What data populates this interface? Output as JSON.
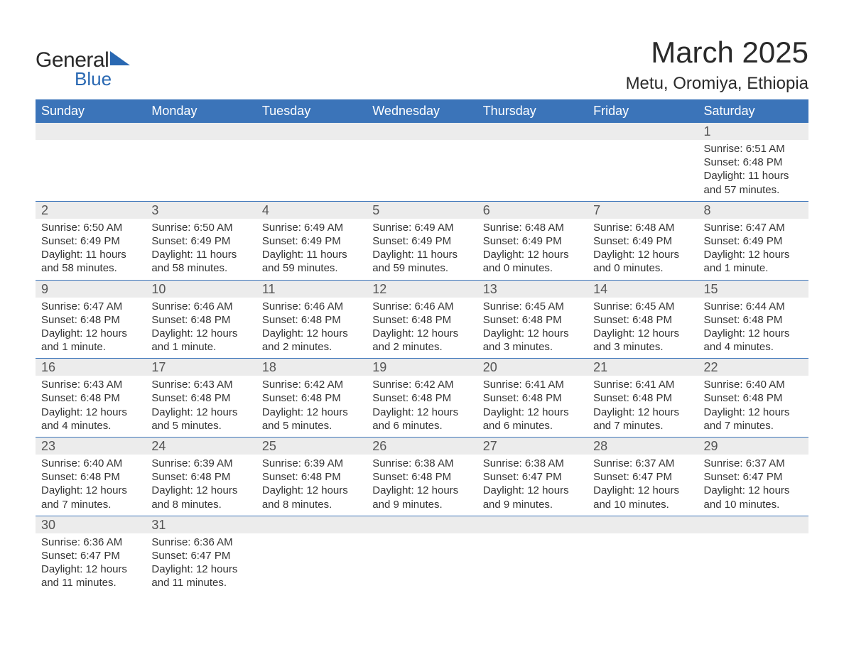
{
  "brand": {
    "word1": "General",
    "word2": "Blue",
    "accent": "#2968b2"
  },
  "title": "March 2025",
  "location": "Metu, Oromiya, Ethiopia",
  "colors": {
    "header_bg": "#3b74b9",
    "header_text": "#ffffff",
    "daynum_bg": "#ececec",
    "daynum_text": "#555555",
    "body_text": "#333333",
    "page_bg": "#ffffff",
    "row_border": "#3b74b9"
  },
  "fonts": {
    "title_size": 42,
    "location_size": 24,
    "header_size": 18,
    "daynum_size": 18,
    "body_size": 15
  },
  "weekdays": [
    "Sunday",
    "Monday",
    "Tuesday",
    "Wednesday",
    "Thursday",
    "Friday",
    "Saturday"
  ],
  "weeks": [
    [
      {
        "empty": true
      },
      {
        "empty": true
      },
      {
        "empty": true
      },
      {
        "empty": true
      },
      {
        "empty": true
      },
      {
        "empty": true
      },
      {
        "n": "1",
        "sunrise": "Sunrise: 6:51 AM",
        "sunset": "Sunset: 6:48 PM",
        "day1": "Daylight: 11 hours",
        "day2": "and 57 minutes."
      }
    ],
    [
      {
        "n": "2",
        "sunrise": "Sunrise: 6:50 AM",
        "sunset": "Sunset: 6:49 PM",
        "day1": "Daylight: 11 hours",
        "day2": "and 58 minutes."
      },
      {
        "n": "3",
        "sunrise": "Sunrise: 6:50 AM",
        "sunset": "Sunset: 6:49 PM",
        "day1": "Daylight: 11 hours",
        "day2": "and 58 minutes."
      },
      {
        "n": "4",
        "sunrise": "Sunrise: 6:49 AM",
        "sunset": "Sunset: 6:49 PM",
        "day1": "Daylight: 11 hours",
        "day2": "and 59 minutes."
      },
      {
        "n": "5",
        "sunrise": "Sunrise: 6:49 AM",
        "sunset": "Sunset: 6:49 PM",
        "day1": "Daylight: 11 hours",
        "day2": "and 59 minutes."
      },
      {
        "n": "6",
        "sunrise": "Sunrise: 6:48 AM",
        "sunset": "Sunset: 6:49 PM",
        "day1": "Daylight: 12 hours",
        "day2": "and 0 minutes."
      },
      {
        "n": "7",
        "sunrise": "Sunrise: 6:48 AM",
        "sunset": "Sunset: 6:49 PM",
        "day1": "Daylight: 12 hours",
        "day2": "and 0 minutes."
      },
      {
        "n": "8",
        "sunrise": "Sunrise: 6:47 AM",
        "sunset": "Sunset: 6:49 PM",
        "day1": "Daylight: 12 hours",
        "day2": "and 1 minute."
      }
    ],
    [
      {
        "n": "9",
        "sunrise": "Sunrise: 6:47 AM",
        "sunset": "Sunset: 6:48 PM",
        "day1": "Daylight: 12 hours",
        "day2": "and 1 minute."
      },
      {
        "n": "10",
        "sunrise": "Sunrise: 6:46 AM",
        "sunset": "Sunset: 6:48 PM",
        "day1": "Daylight: 12 hours",
        "day2": "and 1 minute."
      },
      {
        "n": "11",
        "sunrise": "Sunrise: 6:46 AM",
        "sunset": "Sunset: 6:48 PM",
        "day1": "Daylight: 12 hours",
        "day2": "and 2 minutes."
      },
      {
        "n": "12",
        "sunrise": "Sunrise: 6:46 AM",
        "sunset": "Sunset: 6:48 PM",
        "day1": "Daylight: 12 hours",
        "day2": "and 2 minutes."
      },
      {
        "n": "13",
        "sunrise": "Sunrise: 6:45 AM",
        "sunset": "Sunset: 6:48 PM",
        "day1": "Daylight: 12 hours",
        "day2": "and 3 minutes."
      },
      {
        "n": "14",
        "sunrise": "Sunrise: 6:45 AM",
        "sunset": "Sunset: 6:48 PM",
        "day1": "Daylight: 12 hours",
        "day2": "and 3 minutes."
      },
      {
        "n": "15",
        "sunrise": "Sunrise: 6:44 AM",
        "sunset": "Sunset: 6:48 PM",
        "day1": "Daylight: 12 hours",
        "day2": "and 4 minutes."
      }
    ],
    [
      {
        "n": "16",
        "sunrise": "Sunrise: 6:43 AM",
        "sunset": "Sunset: 6:48 PM",
        "day1": "Daylight: 12 hours",
        "day2": "and 4 minutes."
      },
      {
        "n": "17",
        "sunrise": "Sunrise: 6:43 AM",
        "sunset": "Sunset: 6:48 PM",
        "day1": "Daylight: 12 hours",
        "day2": "and 5 minutes."
      },
      {
        "n": "18",
        "sunrise": "Sunrise: 6:42 AM",
        "sunset": "Sunset: 6:48 PM",
        "day1": "Daylight: 12 hours",
        "day2": "and 5 minutes."
      },
      {
        "n": "19",
        "sunrise": "Sunrise: 6:42 AM",
        "sunset": "Sunset: 6:48 PM",
        "day1": "Daylight: 12 hours",
        "day2": "and 6 minutes."
      },
      {
        "n": "20",
        "sunrise": "Sunrise: 6:41 AM",
        "sunset": "Sunset: 6:48 PM",
        "day1": "Daylight: 12 hours",
        "day2": "and 6 minutes."
      },
      {
        "n": "21",
        "sunrise": "Sunrise: 6:41 AM",
        "sunset": "Sunset: 6:48 PM",
        "day1": "Daylight: 12 hours",
        "day2": "and 7 minutes."
      },
      {
        "n": "22",
        "sunrise": "Sunrise: 6:40 AM",
        "sunset": "Sunset: 6:48 PM",
        "day1": "Daylight: 12 hours",
        "day2": "and 7 minutes."
      }
    ],
    [
      {
        "n": "23",
        "sunrise": "Sunrise: 6:40 AM",
        "sunset": "Sunset: 6:48 PM",
        "day1": "Daylight: 12 hours",
        "day2": "and 7 minutes."
      },
      {
        "n": "24",
        "sunrise": "Sunrise: 6:39 AM",
        "sunset": "Sunset: 6:48 PM",
        "day1": "Daylight: 12 hours",
        "day2": "and 8 minutes."
      },
      {
        "n": "25",
        "sunrise": "Sunrise: 6:39 AM",
        "sunset": "Sunset: 6:48 PM",
        "day1": "Daylight: 12 hours",
        "day2": "and 8 minutes."
      },
      {
        "n": "26",
        "sunrise": "Sunrise: 6:38 AM",
        "sunset": "Sunset: 6:48 PM",
        "day1": "Daylight: 12 hours",
        "day2": "and 9 minutes."
      },
      {
        "n": "27",
        "sunrise": "Sunrise: 6:38 AM",
        "sunset": "Sunset: 6:47 PM",
        "day1": "Daylight: 12 hours",
        "day2": "and 9 minutes."
      },
      {
        "n": "28",
        "sunrise": "Sunrise: 6:37 AM",
        "sunset": "Sunset: 6:47 PM",
        "day1": "Daylight: 12 hours",
        "day2": "and 10 minutes."
      },
      {
        "n": "29",
        "sunrise": "Sunrise: 6:37 AM",
        "sunset": "Sunset: 6:47 PM",
        "day1": "Daylight: 12 hours",
        "day2": "and 10 minutes."
      }
    ],
    [
      {
        "n": "30",
        "sunrise": "Sunrise: 6:36 AM",
        "sunset": "Sunset: 6:47 PM",
        "day1": "Daylight: 12 hours",
        "day2": "and 11 minutes."
      },
      {
        "n": "31",
        "sunrise": "Sunrise: 6:36 AM",
        "sunset": "Sunset: 6:47 PM",
        "day1": "Daylight: 12 hours",
        "day2": "and 11 minutes."
      },
      {
        "empty": true
      },
      {
        "empty": true
      },
      {
        "empty": true
      },
      {
        "empty": true
      },
      {
        "empty": true
      }
    ]
  ]
}
